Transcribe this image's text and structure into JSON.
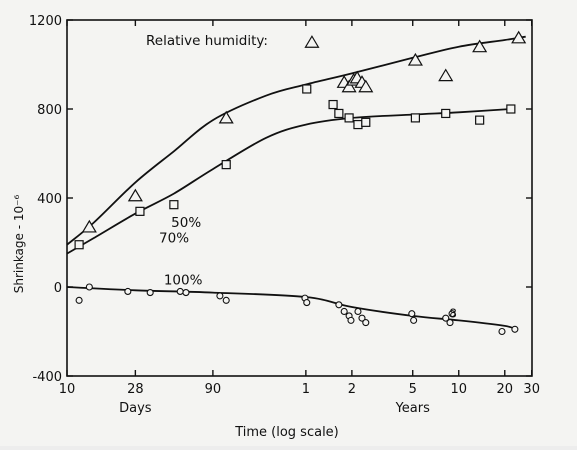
{
  "chart_data": {
    "type": "scatter",
    "title": "",
    "legend_title": "Relative humidity:",
    "xlabel": "Time (log scale)",
    "ylabel": "Shrinkage - 10⁻⁶",
    "x_scale": "log",
    "x_unit": "days",
    "xlim": [
      10,
      11000
    ],
    "ylim": [
      -400,
      1200
    ],
    "y_ticks": [
      {
        "label": "1200",
        "value": 1200
      },
      {
        "label": "800",
        "value": 800
      },
      {
        "label": "400",
        "value": 400
      },
      {
        "label": "0",
        "value": 0
      },
      {
        "label": "-400",
        "value": -400
      }
    ],
    "x_ticks": [
      {
        "label": "10",
        "value": 10
      },
      {
        "label": "28",
        "value": 28
      },
      {
        "label": "90",
        "value": 90
      },
      {
        "label": "1",
        "value": 365
      },
      {
        "label": "2",
        "value": 730
      },
      {
        "label": "5",
        "value": 1825
      },
      {
        "label": "10",
        "value": 3650
      },
      {
        "label": "20",
        "value": 7300
      },
      {
        "label": "30",
        "value": 10950
      }
    ],
    "x_unit_labels": [
      {
        "label": "Days",
        "value": 28
      },
      {
        "label": "Years",
        "value": 1825
      }
    ],
    "series": [
      {
        "name": "50%",
        "marker": "triangle",
        "points": [
          [
            14,
            270
          ],
          [
            28,
            410
          ],
          [
            110,
            760
          ],
          [
            400,
            1100
          ],
          [
            650,
            920
          ],
          [
            700,
            900
          ],
          [
            750,
            930
          ],
          [
            790,
            940
          ],
          [
            850,
            920
          ],
          [
            900,
            900
          ],
          [
            1900,
            1020
          ],
          [
            3000,
            950
          ],
          [
            5000,
            1080
          ],
          [
            9000,
            1120
          ]
        ],
        "curve": [
          [
            10,
            190
          ],
          [
            15,
            290
          ],
          [
            28,
            470
          ],
          [
            50,
            610
          ],
          [
            90,
            750
          ],
          [
            200,
            860
          ],
          [
            365,
            910
          ],
          [
            730,
            960
          ],
          [
            1825,
            1030
          ],
          [
            3650,
            1080
          ],
          [
            7300,
            1110
          ],
          [
            10000,
            1125
          ]
        ]
      },
      {
        "name": "70%",
        "marker": "square",
        "points": [
          [
            12,
            190
          ],
          [
            30,
            340
          ],
          [
            50,
            370
          ],
          [
            110,
            550
          ],
          [
            370,
            890
          ],
          [
            550,
            820
          ],
          [
            600,
            780
          ],
          [
            700,
            760
          ],
          [
            800,
            730
          ],
          [
            900,
            740
          ],
          [
            1900,
            760
          ],
          [
            3000,
            780
          ],
          [
            5000,
            750
          ],
          [
            8000,
            800
          ]
        ],
        "curve": [
          [
            10,
            150
          ],
          [
            15,
            220
          ],
          [
            28,
            330
          ],
          [
            50,
            420
          ],
          [
            90,
            530
          ],
          [
            200,
            670
          ],
          [
            365,
            730
          ],
          [
            730,
            760
          ],
          [
            1825,
            775
          ],
          [
            3650,
            785
          ],
          [
            8000,
            800
          ]
        ]
      },
      {
        "name": "100%",
        "marker": "circle",
        "points": [
          [
            12,
            -60
          ],
          [
            14,
            0
          ],
          [
            25,
            -20
          ],
          [
            35,
            -25
          ],
          [
            55,
            -20
          ],
          [
            60,
            -25
          ],
          [
            100,
            -40
          ],
          [
            110,
            -60
          ],
          [
            360,
            -50
          ],
          [
            370,
            -70
          ],
          [
            600,
            -80
          ],
          [
            650,
            -110
          ],
          [
            700,
            -130
          ],
          [
            720,
            -150
          ],
          [
            800,
            -110
          ],
          [
            850,
            -140
          ],
          [
            900,
            -160
          ],
          [
            1800,
            -120
          ],
          [
            1850,
            -150
          ],
          [
            3000,
            -140
          ],
          [
            3200,
            -160
          ],
          [
            3300,
            -120
          ],
          [
            7000,
            -200
          ],
          [
            8500,
            -190
          ]
        ],
        "curve": [
          [
            10,
            0
          ],
          [
            28,
            -15
          ],
          [
            90,
            -25
          ],
          [
            365,
            -45
          ],
          [
            730,
            -90
          ],
          [
            1825,
            -130
          ],
          [
            3650,
            -150
          ],
          [
            7300,
            -175
          ],
          [
            8500,
            -190
          ]
        ]
      }
    ],
    "extra_marks": [
      {
        "text": "8",
        "x": 3350,
        "y": -120
      }
    ]
  }
}
